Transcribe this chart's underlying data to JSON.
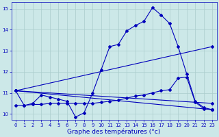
{
  "bg_color": "#cce8e8",
  "grid_color": "#aacccc",
  "line_color": "#0000bb",
  "xlabel": "Graphe des températures (°c)",
  "xlabel_color": "#0000bb",
  "xlim": [
    -0.5,
    23.5
  ],
  "ylim": [
    9.7,
    15.3
  ],
  "yticks": [
    10,
    11,
    12,
    13,
    14,
    15
  ],
  "xticks": [
    0,
    1,
    2,
    3,
    4,
    5,
    6,
    7,
    8,
    9,
    10,
    11,
    12,
    13,
    14,
    15,
    16,
    17,
    18,
    19,
    20,
    21,
    22,
    23
  ],
  "line1_x": [
    0,
    1,
    2,
    3,
    4,
    5,
    6,
    7,
    8,
    9,
    10,
    11,
    12,
    13,
    14,
    15,
    16,
    17,
    18,
    19,
    20,
    21,
    22,
    23
  ],
  "line1_y": [
    11.1,
    10.4,
    10.5,
    10.9,
    10.8,
    10.7,
    10.6,
    9.85,
    10.05,
    11.0,
    12.1,
    13.2,
    13.3,
    13.95,
    14.2,
    14.4,
    15.05,
    14.7,
    14.3,
    13.2,
    11.9,
    10.6,
    10.3,
    10.2
  ],
  "line2_x": [
    0,
    23
  ],
  "line2_y": [
    11.1,
    10.2
  ],
  "line3_x": [
    0,
    23
  ],
  "line3_y": [
    11.1,
    10.5
  ],
  "line4_x": [
    0,
    23
  ],
  "line4_y": [
    11.1,
    13.2
  ],
  "line5_x": [
    0,
    1,
    2,
    3,
    4,
    5,
    6,
    7,
    8,
    9,
    10,
    11,
    12,
    13,
    14,
    15,
    16,
    17,
    18,
    19,
    20,
    21,
    22,
    23
  ],
  "line5_y": [
    10.4,
    10.4,
    10.45,
    10.45,
    10.5,
    10.5,
    10.5,
    10.5,
    10.5,
    10.5,
    10.55,
    10.6,
    10.65,
    10.75,
    10.85,
    10.9,
    11.0,
    11.1,
    11.15,
    11.7,
    11.75,
    10.55,
    10.25,
    10.2
  ]
}
